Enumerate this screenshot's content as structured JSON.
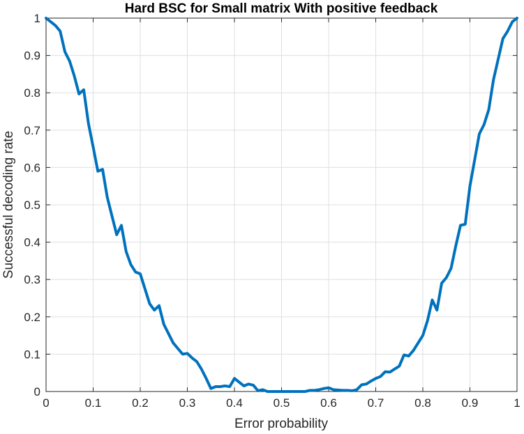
{
  "chart_data": {
    "type": "line",
    "title": "Hard BSC for Small matrix With positive feedback",
    "xlabel": "Error probability",
    "ylabel": "Successful decoding rate",
    "xlim": [
      0,
      1
    ],
    "ylim": [
      0,
      1
    ],
    "xticks": [
      "0",
      "0.1",
      "0.2",
      "0.3",
      "0.4",
      "0.5",
      "0.6",
      "0.7",
      "0.8",
      "0.9",
      "1"
    ],
    "yticks": [
      "0",
      "0.1",
      "0.2",
      "0.3",
      "0.4",
      "0.5",
      "0.6",
      "0.7",
      "0.8",
      "0.9",
      "1"
    ],
    "grid": true,
    "line_color": "#0072bd",
    "series": [
      {
        "x": [
          0,
          0.01,
          0.02,
          0.03,
          0.04,
          0.05,
          0.06,
          0.07,
          0.08,
          0.09,
          0.1,
          0.11,
          0.12,
          0.13,
          0.14,
          0.15,
          0.16,
          0.17,
          0.18,
          0.19,
          0.2,
          0.21,
          0.22,
          0.23,
          0.24,
          0.25,
          0.26,
          0.27,
          0.28,
          0.29,
          0.3,
          0.31,
          0.32,
          0.33,
          0.34,
          0.35,
          0.36,
          0.37,
          0.38,
          0.39,
          0.4,
          0.41,
          0.42,
          0.43,
          0.44,
          0.45,
          0.46,
          0.47,
          0.48,
          0.49,
          0.5,
          0.51,
          0.52,
          0.53,
          0.54,
          0.55,
          0.56,
          0.57,
          0.58,
          0.59,
          0.6,
          0.61,
          0.62,
          0.63,
          0.64,
          0.65,
          0.66,
          0.67,
          0.68,
          0.69,
          0.7,
          0.71,
          0.72,
          0.73,
          0.74,
          0.75,
          0.76,
          0.77,
          0.78,
          0.79,
          0.8,
          0.81,
          0.82,
          0.83,
          0.84,
          0.85,
          0.86,
          0.87,
          0.88,
          0.89,
          0.9,
          0.91,
          0.92,
          0.93,
          0.94,
          0.95,
          0.96,
          0.97,
          0.98,
          0.99,
          1.0
        ],
        "y": [
          1.0,
          0.99,
          0.98,
          0.965,
          0.91,
          0.885,
          0.845,
          0.797,
          0.808,
          0.718,
          0.655,
          0.59,
          0.595,
          0.52,
          0.47,
          0.42,
          0.445,
          0.375,
          0.34,
          0.32,
          0.315,
          0.275,
          0.235,
          0.218,
          0.23,
          0.18,
          0.155,
          0.13,
          0.115,
          0.1,
          0.102,
          0.09,
          0.08,
          0.06,
          0.035,
          0.008,
          0.013,
          0.013,
          0.015,
          0.013,
          0.035,
          0.025,
          0.015,
          0.02,
          0.017,
          0.002,
          0.005,
          0.0,
          0.0,
          0.0,
          0.0,
          0.0,
          0.0,
          0.0,
          0.0,
          0.0,
          0.003,
          0.003,
          0.005,
          0.008,
          0.01,
          0.005,
          0.004,
          0.003,
          0.003,
          0.002,
          0.005,
          0.018,
          0.02,
          0.028,
          0.035,
          0.04,
          0.053,
          0.052,
          0.06,
          0.068,
          0.098,
          0.095,
          0.11,
          0.13,
          0.15,
          0.19,
          0.245,
          0.218,
          0.29,
          0.305,
          0.33,
          0.39,
          0.445,
          0.448,
          0.55,
          0.62,
          0.69,
          0.715,
          0.755,
          0.835,
          0.89,
          0.945,
          0.965,
          0.99,
          1.0
        ]
      }
    ]
  }
}
